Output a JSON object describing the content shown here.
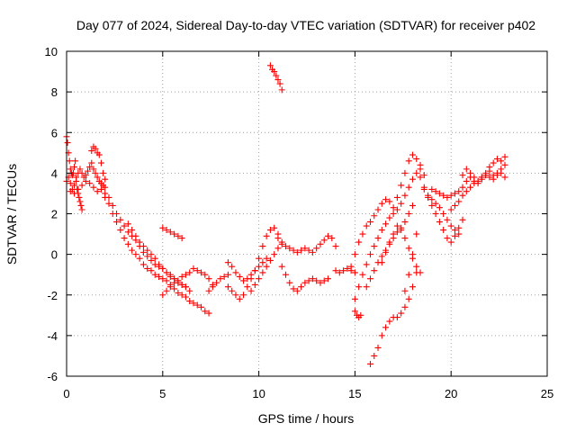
{
  "chart_data": {
    "type": "scatter",
    "title": "Day 077 of 2024, Sidereal Day-to-day VTEC variation (SDTVAR) for receiver p402",
    "xlabel": "GPS time / hours",
    "ylabel": "SDTVAR / TECUs",
    "xlim": [
      0,
      25
    ],
    "ylim": [
      -6,
      10
    ],
    "xticks": [
      0,
      5,
      10,
      15,
      20,
      25
    ],
    "yticks": [
      -6,
      -4,
      -2,
      0,
      2,
      4,
      6,
      8,
      10
    ],
    "grid": true,
    "marker": "plus",
    "color": "#ff0000",
    "series": [
      {
        "x": [
          0.0,
          0.05,
          0.1,
          0.15,
          0.2,
          0.25,
          0.3,
          0.35,
          0.4,
          0.45,
          0.5,
          0.55,
          0.6,
          0.65,
          0.7,
          0.75,
          0.8
        ],
        "y": [
          5.8,
          5.5,
          5.0,
          4.6,
          4.2,
          4.0,
          3.9,
          4.0,
          4.3,
          4.6,
          3.8,
          3.2,
          3.0,
          2.8,
          2.6,
          2.4,
          2.2
        ]
      },
      {
        "x": [
          0.0,
          0.1,
          0.2,
          0.3,
          0.4,
          0.5,
          0.6,
          0.7,
          0.8,
          0.9,
          1.0,
          1.1,
          1.2,
          1.3,
          1.4,
          1.5,
          1.6,
          1.7,
          1.8,
          1.9,
          2.0
        ],
        "y": [
          3.6,
          3.8,
          3.5,
          3.2,
          3.4,
          3.6,
          4.0,
          4.2,
          4.0,
          3.8,
          3.9,
          4.1,
          4.3,
          4.5,
          4.2,
          4.0,
          3.8,
          3.6,
          3.5,
          3.4,
          3.3
        ]
      },
      {
        "x": [
          1.3,
          1.4,
          1.5,
          1.6,
          1.7,
          1.8,
          1.9,
          2.0
        ],
        "y": [
          5.1,
          5.3,
          5.2,
          5.0,
          4.9,
          4.5,
          4.0,
          3.7
        ]
      },
      {
        "x": [
          0.2,
          0.4,
          0.6,
          0.8,
          1.0,
          1.2,
          1.4,
          1.6,
          1.8,
          2.0,
          2.2
        ],
        "y": [
          3.1,
          3.0,
          3.2,
          3.4,
          3.6,
          3.5,
          3.3,
          3.1,
          3.2,
          3.0,
          2.8
        ]
      },
      {
        "x": [
          2.0,
          2.2,
          2.4,
          2.6,
          2.8,
          3.0,
          3.2,
          3.4,
          3.6,
          3.8,
          4.0,
          4.2,
          4.4,
          4.6,
          4.8,
          5.0,
          5.2,
          5.4,
          5.6,
          5.8,
          6.0,
          6.2,
          6.4,
          6.6,
          6.8,
          7.0,
          7.2,
          7.4
        ],
        "y": [
          2.8,
          2.5,
          2.0,
          1.6,
          1.2,
          0.8,
          0.5,
          0.2,
          0.0,
          -0.2,
          -0.5,
          -0.7,
          -0.8,
          -1.0,
          -1.1,
          -1.2,
          -1.3,
          -1.5,
          -1.7,
          -1.9,
          -2.0,
          -2.1,
          -2.3,
          -2.4,
          -2.5,
          -2.6,
          -2.8,
          -2.9
        ]
      },
      {
        "x": [
          2.4,
          2.6,
          2.8,
          3.0,
          3.2,
          3.4,
          3.6,
          3.8,
          4.0,
          4.2,
          4.4,
          4.6,
          4.8,
          5.0,
          5.2,
          5.4,
          5.6,
          5.8,
          6.0,
          6.2,
          6.4
        ],
        "y": [
          2.4,
          2.0,
          1.7,
          1.4,
          1.1,
          0.9,
          0.7,
          0.4,
          0.1,
          -0.1,
          -0.3,
          -0.5,
          -0.6,
          -0.7,
          -0.9,
          -1.0,
          -1.2,
          -1.3,
          -1.5,
          -1.6,
          -1.8
        ]
      },
      {
        "x": [
          3.2,
          3.4,
          3.6,
          3.8,
          4.0,
          4.2,
          4.4,
          4.6,
          4.8,
          5.0,
          5.2,
          5.4,
          5.6,
          5.8,
          6.0,
          6.2
        ],
        "y": [
          1.5,
          1.2,
          0.9,
          0.6,
          0.4,
          0.2,
          0.0,
          -0.2,
          -0.5,
          -0.7,
          -0.9,
          -1.1,
          -1.2,
          -1.4,
          -1.5,
          -1.6
        ]
      },
      {
        "x": [
          5.0,
          5.2,
          5.4,
          5.6,
          5.8,
          6.0,
          6.2,
          6.4,
          6.6,
          6.8,
          7.0,
          7.2,
          7.4,
          7.6
        ],
        "y": [
          -2.0,
          -1.8,
          -1.6,
          -1.4,
          -1.3,
          -1.1,
          -1.0,
          -0.9,
          -0.7,
          -0.8,
          -0.9,
          -1.0,
          -1.2,
          -1.5
        ]
      },
      {
        "x": [
          5.0,
          5.2,
          5.4,
          5.6,
          5.8,
          6.0
        ],
        "y": [
          1.3,
          1.2,
          1.1,
          1.0,
          0.9,
          0.8
        ]
      },
      {
        "x": [
          7.4,
          7.6,
          7.8,
          8.0,
          8.2,
          8.4
        ],
        "y": [
          -1.8,
          -1.6,
          -1.4,
          -1.2,
          -1.1,
          -1.0
        ]
      },
      {
        "x": [
          8.4,
          8.6,
          8.8,
          9.0,
          9.2,
          9.4,
          9.6,
          9.8,
          10.0,
          10.2,
          10.4,
          10.6,
          10.8,
          11.0
        ],
        "y": [
          -1.6,
          -1.8,
          -2.0,
          -2.2,
          -2.0,
          -1.6,
          -1.2,
          -0.8,
          -0.2,
          0.4,
          0.9,
          1.2,
          1.3,
          1.0
        ]
      },
      {
        "x": [
          8.4,
          8.6,
          8.8,
          9.0,
          9.2,
          9.4,
          9.6,
          9.8,
          10.0,
          10.2,
          10.4
        ],
        "y": [
          -0.4,
          -0.6,
          -0.9,
          -1.1,
          -1.3,
          -1.2,
          -1.0,
          -0.8,
          -0.6,
          -0.4,
          -0.2
        ]
      },
      {
        "x": [
          9.6,
          9.8,
          10.0,
          10.2,
          10.4,
          10.6,
          10.8,
          11.0,
          11.2
        ],
        "y": [
          -1.8,
          -1.5,
          -1.2,
          -0.9,
          -0.6,
          -0.3,
          0.0,
          0.3,
          0.5
        ]
      },
      {
        "x": [
          10.6,
          10.7,
          10.8,
          10.9,
          11.0,
          11.1,
          11.2
        ],
        "y": [
          9.3,
          9.1,
          9.0,
          8.8,
          8.6,
          8.4,
          8.1
        ]
      },
      {
        "x": [
          11.0,
          11.2,
          11.4,
          11.6,
          11.8,
          12.0,
          12.2,
          12.4,
          12.6,
          12.8,
          13.0,
          13.2,
          13.4,
          13.6,
          13.8,
          14.0
        ],
        "y": [
          0.8,
          0.6,
          0.4,
          0.3,
          0.2,
          0.1,
          0.2,
          0.3,
          0.2,
          0.1,
          0.3,
          0.5,
          0.7,
          0.9,
          0.8,
          0.4
        ]
      },
      {
        "x": [
          11.2,
          11.4,
          11.6,
          11.8,
          12.0,
          12.2,
          12.4,
          12.6,
          12.8,
          13.0,
          13.2,
          13.4,
          13.6
        ],
        "y": [
          -0.6,
          -1.0,
          -1.4,
          -1.7,
          -1.8,
          -1.6,
          -1.4,
          -1.3,
          -1.2,
          -1.3,
          -1.4,
          -1.3,
          -1.2
        ]
      },
      {
        "x": [
          14.0,
          14.2,
          14.4,
          14.6,
          14.8,
          15.0
        ],
        "y": [
          -0.8,
          -0.9,
          -0.8,
          -0.7,
          -0.8,
          -0.9
        ]
      },
      {
        "x": [
          14.8,
          15.0,
          15.2,
          15.4,
          15.6,
          15.8,
          16.0,
          16.2,
          16.4,
          16.6,
          16.8,
          17.0,
          17.2,
          17.4,
          17.6,
          17.8,
          18.0,
          18.2,
          18.4,
          18.6
        ],
        "y": [
          -0.6,
          0.0,
          0.6,
          1.0,
          1.4,
          1.6,
          1.9,
          2.2,
          2.5,
          2.7,
          2.6,
          2.3,
          2.8,
          3.4,
          4.0,
          4.6,
          4.9,
          4.7,
          4.4,
          3.9
        ]
      },
      {
        "x": [
          15.0,
          15.2,
          15.4,
          15.6,
          15.8,
          16.0,
          16.2,
          16.4,
          16.6,
          16.8,
          17.0,
          17.2,
          17.4,
          17.6,
          17.8,
          18.0,
          18.2,
          18.4
        ],
        "y": [
          -2.2,
          -1.6,
          -1.0,
          -0.5,
          0.0,
          0.4,
          0.8,
          1.2,
          1.5,
          1.8,
          2.0,
          2.2,
          2.5,
          2.9,
          3.3,
          3.7,
          4.0,
          4.2
        ]
      },
      {
        "x": [
          15.0,
          15.1,
          15.2,
          15.3
        ],
        "y": [
          -2.8,
          -3.0,
          -3.1,
          -3.0
        ]
      },
      {
        "x": [
          15.6,
          15.8,
          16.0,
          16.2,
          16.4,
          16.6,
          16.8,
          17.0,
          17.2,
          17.4,
          17.6,
          17.8,
          18.0
        ],
        "y": [
          -1.6,
          -1.2,
          -0.8,
          -0.4,
          -0.1,
          0.2,
          0.5,
          0.8,
          1.1,
          1.3,
          1.6,
          2.0,
          2.4
        ]
      },
      {
        "x": [
          15.8,
          16.0,
          16.2,
          16.4,
          16.6,
          16.8,
          17.0,
          17.2,
          17.4,
          17.6,
          17.8,
          18.0,
          18.2
        ],
        "y": [
          -5.4,
          -5.0,
          -4.6,
          -4.0,
          -3.6,
          -3.3,
          -3.1,
          -3.1,
          -2.9,
          -2.6,
          -2.2,
          -1.6,
          -0.9
        ]
      },
      {
        "x": [
          16.4,
          16.6,
          16.8,
          17.0,
          17.2,
          17.4,
          17.6,
          17.8,
          18.0,
          18.2,
          18.4
        ],
        "y": [
          -0.4,
          0.1,
          0.6,
          1.0,
          1.4,
          1.2,
          0.8,
          0.3,
          -0.2,
          -0.6,
          -0.9
        ]
      },
      {
        "x": [
          17.6,
          17.8,
          18.0,
          18.2
        ],
        "y": [
          -1.8,
          -1.0,
          0.0,
          1.0
        ]
      },
      {
        "x": [
          18.4,
          18.6,
          18.8,
          19.0,
          19.2,
          19.4,
          19.6,
          19.8,
          20.0,
          20.2,
          20.4,
          20.6
        ],
        "y": [
          3.8,
          3.3,
          2.8,
          2.4,
          2.0,
          1.6,
          1.2,
          0.8,
          0.6,
          0.9,
          1.3,
          1.7
        ]
      },
      {
        "x": [
          18.6,
          18.8,
          19.0,
          19.2,
          19.4,
          19.6,
          19.8,
          20.0,
          20.2,
          20.4
        ],
        "y": [
          3.2,
          2.9,
          2.7,
          2.5,
          2.3,
          2.0,
          1.7,
          1.4,
          1.2,
          1.0
        ]
      },
      {
        "x": [
          19.0,
          19.2,
          19.4,
          19.6,
          19.8,
          20.0,
          20.2,
          20.4,
          20.6,
          20.8,
          21.0,
          21.2,
          21.4,
          21.6,
          21.8,
          22.0,
          22.2,
          22.4,
          22.6,
          22.8
        ],
        "y": [
          3.2,
          3.1,
          3.0,
          2.9,
          2.8,
          2.9,
          3.0,
          3.1,
          3.3,
          3.6,
          3.8,
          3.6,
          3.5,
          3.7,
          3.9,
          4.1,
          3.9,
          4.0,
          4.2,
          4.4
        ]
      },
      {
        "x": [
          20.6,
          20.8,
          21.0,
          21.2,
          21.4,
          21.6,
          21.8,
          22.0,
          22.2,
          22.4,
          22.6,
          22.8
        ],
        "y": [
          3.9,
          4.2,
          4.0,
          3.8,
          3.6,
          3.8,
          4.0,
          4.3,
          4.5,
          4.7,
          4.6,
          4.8
        ]
      },
      {
        "x": [
          20.0,
          20.2,
          20.4,
          20.6,
          20.8,
          21.0,
          21.2,
          21.4,
          21.6,
          21.8,
          22.0,
          22.2,
          22.4,
          22.6,
          22.8
        ],
        "y": [
          2.2,
          2.4,
          2.6,
          2.9,
          3.1,
          3.3,
          3.5,
          3.6,
          3.8,
          3.9,
          3.8,
          3.7,
          3.9,
          4.0,
          3.8
        ]
      }
    ]
  }
}
